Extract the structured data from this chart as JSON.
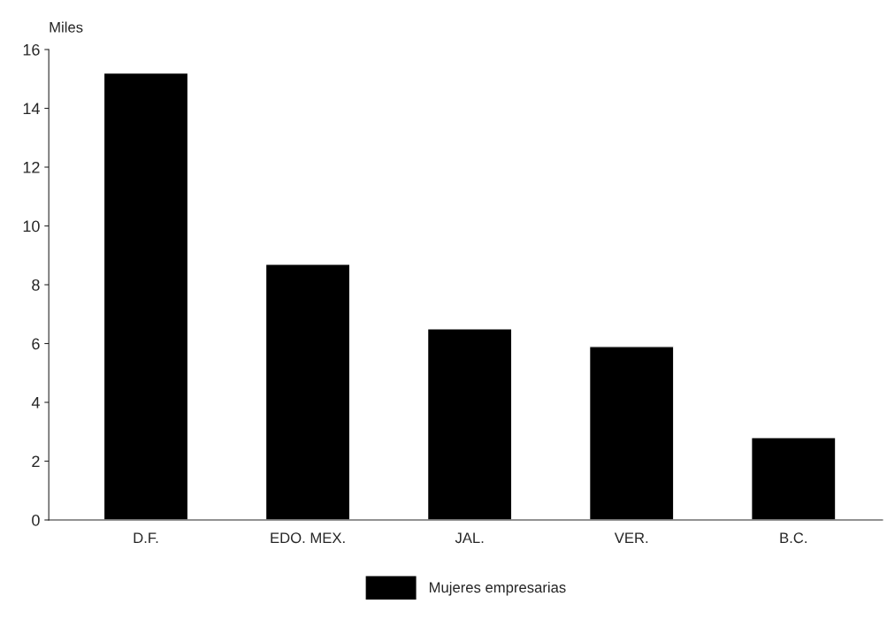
{
  "chart_data": {
    "type": "bar",
    "ylabel": "Miles",
    "categories": [
      "D.F.",
      "EDO. MEX.",
      "JAL.",
      "VER.",
      "B.C."
    ],
    "series": [
      {
        "name": "Mujeres empresarias",
        "color": "#000000",
        "values": [
          15.2,
          8.7,
          6.5,
          5.9,
          2.8
        ]
      }
    ],
    "ylim": [
      0,
      16
    ],
    "yticks": [
      0,
      2,
      4,
      6,
      8,
      10,
      12,
      14,
      16
    ],
    "grid": false,
    "legend": "bottom"
  }
}
